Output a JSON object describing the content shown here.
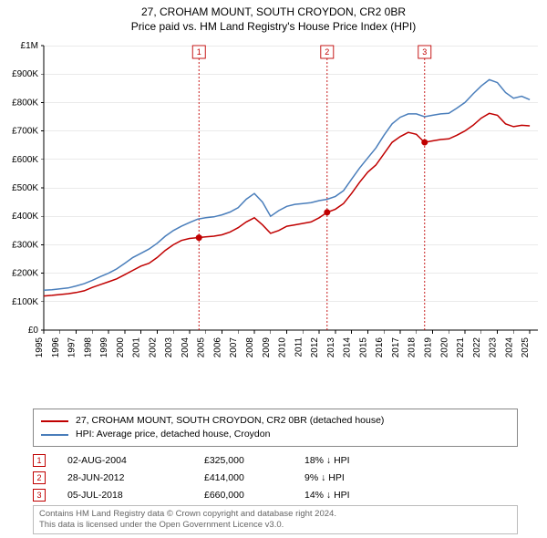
{
  "title": {
    "main": "27, CROHAM MOUNT, SOUTH CROYDON, CR2 0BR",
    "sub": "Price paid vs. HM Land Registry's House Price Index (HPI)"
  },
  "chart": {
    "type": "line",
    "background_color": "#ffffff",
    "grid_color": "#d9d9d9",
    "axis_color": "#000000",
    "axis_fontsize": 10,
    "x": {
      "min": 1995,
      "max": 2025.5,
      "ticks": [
        1995,
        1996,
        1997,
        1998,
        1999,
        2000,
        2001,
        2002,
        2003,
        2004,
        2005,
        2006,
        2007,
        2008,
        2009,
        2010,
        2011,
        2012,
        2013,
        2014,
        2015,
        2016,
        2017,
        2018,
        2019,
        2020,
        2021,
        2022,
        2023,
        2024,
        2025
      ],
      "tick_labels": [
        "1995",
        "1996",
        "1997",
        "1998",
        "1999",
        "2000",
        "2001",
        "2002",
        "2003",
        "2004",
        "2005",
        "2006",
        "2007",
        "2008",
        "2009",
        "2010",
        "2011",
        "2012",
        "2013",
        "2014",
        "2015",
        "2016",
        "2017",
        "2018",
        "2019",
        "2020",
        "2021",
        "2022",
        "2023",
        "2024",
        "2025"
      ],
      "label_rotation": -90
    },
    "y": {
      "min": 0,
      "max": 1000000,
      "ticks": [
        0,
        100000,
        200000,
        300000,
        400000,
        500000,
        600000,
        700000,
        800000,
        900000,
        1000000
      ],
      "tick_labels": [
        "£0",
        "£100K",
        "£200K",
        "£300K",
        "£400K",
        "£500K",
        "£600K",
        "£700K",
        "£800K",
        "£900K",
        "£1M"
      ]
    },
    "series": [
      {
        "name": "property",
        "label": "27, CROHAM MOUNT, SOUTH CROYDON, CR2 0BR (detached house)",
        "color": "#c00000",
        "line_width": 1.5,
        "points": [
          [
            1995.0,
            120000
          ],
          [
            1995.5,
            122000
          ],
          [
            1996.0,
            125000
          ],
          [
            1996.5,
            128000
          ],
          [
            1997.0,
            132000
          ],
          [
            1997.5,
            138000
          ],
          [
            1998.0,
            150000
          ],
          [
            1998.5,
            160000
          ],
          [
            1999.0,
            170000
          ],
          [
            1999.5,
            180000
          ],
          [
            2000.0,
            195000
          ],
          [
            2000.5,
            210000
          ],
          [
            2001.0,
            225000
          ],
          [
            2001.5,
            235000
          ],
          [
            2002.0,
            255000
          ],
          [
            2002.5,
            280000
          ],
          [
            2003.0,
            300000
          ],
          [
            2003.5,
            315000
          ],
          [
            2004.0,
            322000
          ],
          [
            2004.5,
            325000
          ],
          [
            2005.0,
            328000
          ],
          [
            2005.5,
            330000
          ],
          [
            2006.0,
            335000
          ],
          [
            2006.5,
            345000
          ],
          [
            2007.0,
            360000
          ],
          [
            2007.5,
            380000
          ],
          [
            2008.0,
            395000
          ],
          [
            2008.5,
            370000
          ],
          [
            2009.0,
            340000
          ],
          [
            2009.5,
            350000
          ],
          [
            2010.0,
            365000
          ],
          [
            2010.5,
            370000
          ],
          [
            2011.0,
            375000
          ],
          [
            2011.5,
            380000
          ],
          [
            2012.0,
            395000
          ],
          [
            2012.5,
            414000
          ],
          [
            2013.0,
            425000
          ],
          [
            2013.5,
            445000
          ],
          [
            2014.0,
            480000
          ],
          [
            2014.5,
            520000
          ],
          [
            2015.0,
            555000
          ],
          [
            2015.5,
            580000
          ],
          [
            2016.0,
            620000
          ],
          [
            2016.5,
            660000
          ],
          [
            2017.0,
            680000
          ],
          [
            2017.5,
            695000
          ],
          [
            2018.0,
            688000
          ],
          [
            2018.5,
            660000
          ],
          [
            2019.0,
            665000
          ],
          [
            2019.5,
            670000
          ],
          [
            2020.0,
            672000
          ],
          [
            2020.5,
            685000
          ],
          [
            2021.0,
            700000
          ],
          [
            2021.5,
            720000
          ],
          [
            2022.0,
            745000
          ],
          [
            2022.5,
            762000
          ],
          [
            2023.0,
            755000
          ],
          [
            2023.5,
            725000
          ],
          [
            2024.0,
            715000
          ],
          [
            2024.5,
            720000
          ],
          [
            2025.0,
            718000
          ]
        ]
      },
      {
        "name": "hpi",
        "label": "HPI: Average price, detached house, Croydon",
        "color": "#4a7ebb",
        "line_width": 1.3,
        "points": [
          [
            1995.0,
            140000
          ],
          [
            1995.5,
            142000
          ],
          [
            1996.0,
            145000
          ],
          [
            1996.5,
            148000
          ],
          [
            1997.0,
            155000
          ],
          [
            1997.5,
            163000
          ],
          [
            1998.0,
            175000
          ],
          [
            1998.5,
            188000
          ],
          [
            1999.0,
            200000
          ],
          [
            1999.5,
            215000
          ],
          [
            2000.0,
            235000
          ],
          [
            2000.5,
            255000
          ],
          [
            2001.0,
            270000
          ],
          [
            2001.5,
            285000
          ],
          [
            2002.0,
            305000
          ],
          [
            2002.5,
            330000
          ],
          [
            2003.0,
            350000
          ],
          [
            2003.5,
            365000
          ],
          [
            2004.0,
            378000
          ],
          [
            2004.5,
            390000
          ],
          [
            2005.0,
            395000
          ],
          [
            2005.5,
            398000
          ],
          [
            2006.0,
            405000
          ],
          [
            2006.5,
            415000
          ],
          [
            2007.0,
            430000
          ],
          [
            2007.5,
            460000
          ],
          [
            2008.0,
            480000
          ],
          [
            2008.5,
            450000
          ],
          [
            2009.0,
            400000
          ],
          [
            2009.5,
            420000
          ],
          [
            2010.0,
            435000
          ],
          [
            2010.5,
            442000
          ],
          [
            2011.0,
            445000
          ],
          [
            2011.5,
            448000
          ],
          [
            2012.0,
            455000
          ],
          [
            2012.5,
            460000
          ],
          [
            2013.0,
            470000
          ],
          [
            2013.5,
            490000
          ],
          [
            2014.0,
            530000
          ],
          [
            2014.5,
            570000
          ],
          [
            2015.0,
            605000
          ],
          [
            2015.5,
            640000
          ],
          [
            2016.0,
            685000
          ],
          [
            2016.5,
            725000
          ],
          [
            2017.0,
            748000
          ],
          [
            2017.5,
            760000
          ],
          [
            2018.0,
            760000
          ],
          [
            2018.5,
            750000
          ],
          [
            2019.0,
            755000
          ],
          [
            2019.5,
            760000
          ],
          [
            2020.0,
            762000
          ],
          [
            2020.5,
            780000
          ],
          [
            2021.0,
            800000
          ],
          [
            2021.5,
            830000
          ],
          [
            2022.0,
            858000
          ],
          [
            2022.5,
            880000
          ],
          [
            2023.0,
            870000
          ],
          [
            2023.5,
            835000
          ],
          [
            2024.0,
            815000
          ],
          [
            2024.5,
            822000
          ],
          [
            2025.0,
            810000
          ]
        ]
      }
    ],
    "markers": [
      {
        "n": "1",
        "x": 2004.58,
        "y": 325000,
        "date": "02-AUG-2004",
        "price": "£325,000",
        "delta": "18% ↓ HPI"
      },
      {
        "n": "2",
        "x": 2012.49,
        "y": 414000,
        "date": "28-JUN-2012",
        "price": "£414,000",
        "delta": "9% ↓ HPI"
      },
      {
        "n": "3",
        "x": 2018.51,
        "y": 660000,
        "date": "05-JUL-2018",
        "price": "£660,000",
        "delta": "14% ↓ HPI"
      }
    ],
    "marker_color": "#c00000",
    "marker_dot_color": "#c00000"
  },
  "legend": {
    "border_color": "#888888",
    "fontsize": 10.5
  },
  "footer": {
    "line1": "Contains HM Land Registry data © Crown copyright and database right 2024.",
    "line2": "This data is licensed under the Open Government Licence v3.0."
  }
}
